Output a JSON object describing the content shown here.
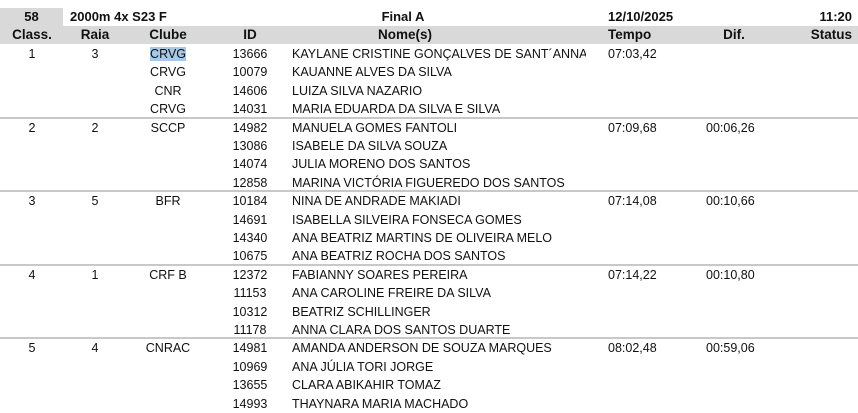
{
  "event": {
    "number": "58",
    "name": "2000m  4x S23 F",
    "phase": "Final A",
    "date": "12/10/2025",
    "time": "11:20"
  },
  "columns": {
    "class": "Class.",
    "raia": "Raia",
    "clube": "Clube",
    "id": "ID",
    "nomes": "Nome(s)",
    "tempo": "Tempo",
    "dif": "Dif.",
    "status": "Status"
  },
  "results": [
    {
      "class": "1",
      "raia": "3",
      "tempo": "07:03,42",
      "dif": "",
      "status": "",
      "athletes": [
        {
          "clube": "CRVG",
          "id": "13666",
          "nome": "KAYLANE CRISTINE GONÇALVES DE SANT´ANNA"
        },
        {
          "clube": "CRVG",
          "id": "10079",
          "nome": "KAUANNE ALVES DA SILVA"
        },
        {
          "clube": "CNR",
          "id": "14606",
          "nome": "LUIZA SILVA NAZARIO"
        },
        {
          "clube": "CRVG",
          "id": "14031",
          "nome": "MARIA EDUARDA DA SILVA E SILVA"
        }
      ]
    },
    {
      "class": "2",
      "raia": "2",
      "tempo": "07:09,68",
      "dif": "00:06,26",
      "status": "",
      "athletes": [
        {
          "clube": "SCCP",
          "id": "14982",
          "nome": "MANUELA GOMES FANTOLI"
        },
        {
          "clube": "",
          "id": "13086",
          "nome": "ISABELE DA SILVA SOUZA"
        },
        {
          "clube": "",
          "id": "14074",
          "nome": "JULIA MORENO DOS SANTOS"
        },
        {
          "clube": "",
          "id": "12858",
          "nome": "MARINA VICTÓRIA FIGUEREDO DOS SANTOS"
        }
      ]
    },
    {
      "class": "3",
      "raia": "5",
      "tempo": "07:14,08",
      "dif": "00:10,66",
      "status": "",
      "athletes": [
        {
          "clube": "BFR",
          "id": "10184",
          "nome": "NINA DE ANDRADE MAKIADI"
        },
        {
          "clube": "",
          "id": "14691",
          "nome": "ISABELLA SILVEIRA FONSECA GOMES"
        },
        {
          "clube": "",
          "id": "14340",
          "nome": "ANA BEATRIZ MARTINS DE OLIVEIRA MELO"
        },
        {
          "clube": "",
          "id": "10675",
          "nome": "ANA BEATRIZ ROCHA DOS SANTOS"
        }
      ]
    },
    {
      "class": "4",
      "raia": "1",
      "tempo": "07:14,22",
      "dif": "00:10,80",
      "status": "",
      "athletes": [
        {
          "clube": "CRF B",
          "id": "12372",
          "nome": "FABIANNY SOARES PEREIRA"
        },
        {
          "clube": "",
          "id": "11153",
          "nome": "ANA CAROLINE FREIRE DA SILVA"
        },
        {
          "clube": "",
          "id": "10312",
          "nome": "BEATRIZ SCHILLINGER"
        },
        {
          "clube": "",
          "id": "11178",
          "nome": "ANNA CLARA DOS SANTOS DUARTE"
        }
      ]
    },
    {
      "class": "5",
      "raia": "4",
      "tempo": "08:02,48",
      "dif": "00:59,06",
      "status": "",
      "athletes": [
        {
          "clube": "CNRAC",
          "id": "14981",
          "nome": "AMANDA ANDERSON DE SOUZA MARQUES"
        },
        {
          "clube": "",
          "id": "10969",
          "nome": "ANA JÚLIA TORI JORGE"
        },
        {
          "clube": "",
          "id": "13655",
          "nome": "CLARA ABIKAHIR TOMAZ"
        },
        {
          "clube": "",
          "id": "14993",
          "nome": "THAYNARA MARIA MACHADO"
        }
      ]
    }
  ]
}
